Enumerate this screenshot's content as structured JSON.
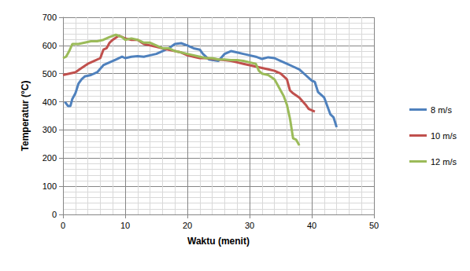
{
  "chart_data": {
    "type": "line",
    "x_label": "Waktu (menit)",
    "y_label": "Temperatur (°C)",
    "xlim": [
      0,
      50
    ],
    "xticks": [
      0,
      10,
      20,
      30,
      40,
      50
    ],
    "ylim": [
      0,
      700
    ],
    "yticks": [
      0,
      100,
      200,
      300,
      400,
      500,
      600,
      700
    ],
    "grid": true,
    "legend": "right",
    "series": [
      {
        "name": "8 m/s",
        "color": "#4F81BD",
        "x": [
          0.3,
          0.8,
          1.2,
          1.5,
          2,
          2.5,
          3,
          3.5,
          4.5,
          5.5,
          6.5,
          7.5,
          8.5,
          9.5,
          10,
          11,
          12,
          13,
          14,
          15,
          16,
          17,
          18,
          19,
          20,
          21,
          22,
          22.5,
          23.5,
          25,
          26,
          27,
          28,
          29,
          30,
          31,
          32,
          33,
          34,
          35,
          36,
          37,
          38,
          39,
          40,
          40.5,
          41,
          42,
          42.5,
          43,
          43.5,
          44
        ],
        "values": [
          400,
          385,
          385,
          410,
          430,
          465,
          480,
          490,
          495,
          505,
          530,
          540,
          550,
          560,
          555,
          560,
          562,
          560,
          565,
          570,
          580,
          590,
          605,
          608,
          600,
          590,
          585,
          570,
          550,
          545,
          570,
          580,
          575,
          570,
          565,
          560,
          552,
          558,
          555,
          545,
          535,
          525,
          515,
          495,
          475,
          470,
          435,
          415,
          385,
          355,
          345,
          310
        ]
      },
      {
        "name": "10 m/s",
        "color": "#C0504D",
        "x": [
          0,
          1,
          2,
          3,
          4,
          5,
          6,
          6.5,
          7,
          7.5,
          8,
          9,
          10,
          11,
          12,
          13,
          14,
          15,
          16,
          17,
          18,
          19,
          20,
          21,
          22,
          23,
          25,
          26,
          27,
          28,
          29,
          30,
          31,
          32,
          33,
          34,
          35,
          36,
          36.5,
          37,
          38,
          39,
          39.5,
          40.5
        ],
        "values": [
          495,
          500,
          505,
          520,
          535,
          545,
          555,
          585,
          590,
          610,
          620,
          635,
          625,
          620,
          620,
          605,
          600,
          595,
          590,
          585,
          580,
          575,
          565,
          560,
          555,
          555,
          550,
          548,
          545,
          540,
          535,
          530,
          525,
          520,
          515,
          510,
          500,
          480,
          440,
          430,
          415,
          390,
          375,
          365
        ]
      },
      {
        "name": "12 m/s",
        "color": "#9BBB59",
        "x": [
          0,
          0.5,
          1,
          1.5,
          2.5,
          3.5,
          4.5,
          5.5,
          6.5,
          7.5,
          8.5,
          9.5,
          10,
          11,
          12,
          13,
          14,
          15,
          16,
          17,
          18,
          19,
          20,
          21,
          22,
          23,
          24,
          25,
          26,
          27,
          28,
          29,
          30,
          31,
          31.5,
          32,
          33,
          34,
          34.5,
          35,
          35.5,
          36,
          36.5,
          37,
          37.5,
          38
        ],
        "values": [
          555,
          560,
          580,
          605,
          605,
          610,
          615,
          615,
          620,
          630,
          638,
          630,
          620,
          625,
          620,
          610,
          610,
          600,
          590,
          590,
          580,
          575,
          570,
          565,
          560,
          555,
          555,
          550,
          550,
          548,
          548,
          545,
          540,
          535,
          510,
          500,
          495,
          480,
          460,
          440,
          420,
          390,
          340,
          270,
          265,
          245
        ]
      }
    ]
  }
}
